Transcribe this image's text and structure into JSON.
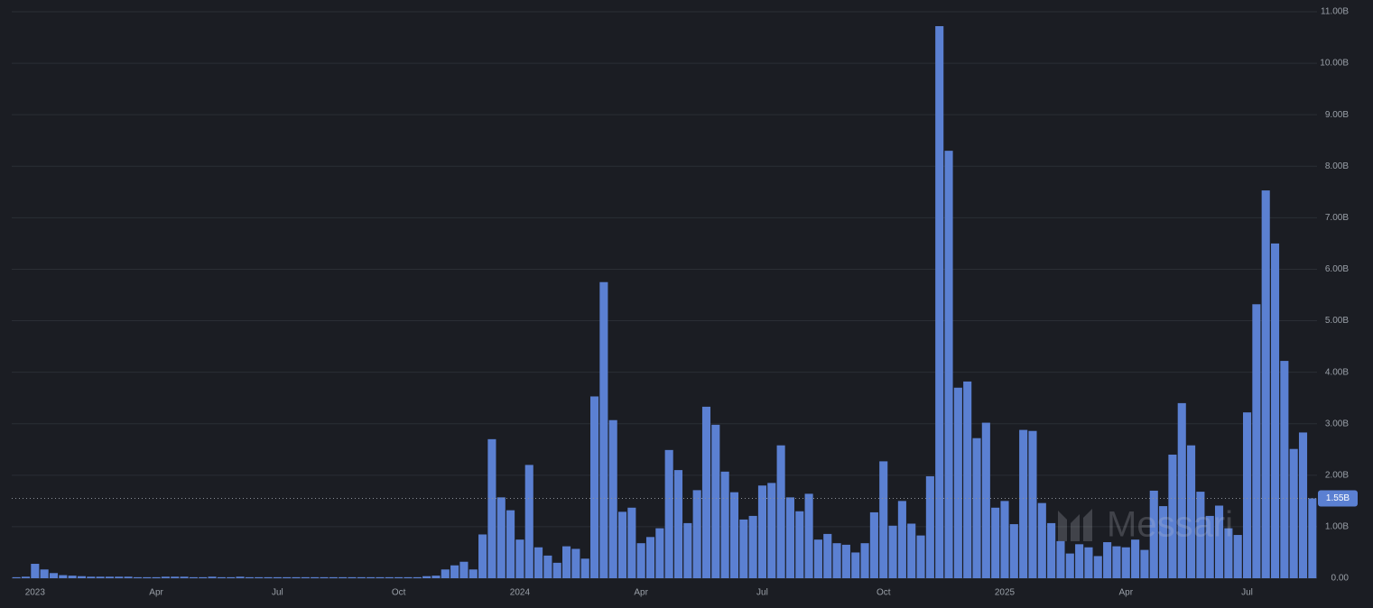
{
  "chart_data": {
    "type": "bar",
    "watermark": "Messari",
    "color": "#5b80d2",
    "grid": true,
    "y_axis_side": "right",
    "ylim": [
      0,
      11
    ],
    "yticks": [
      {
        "value": 0,
        "label": "0.00"
      },
      {
        "value": 1,
        "label": "1.00B"
      },
      {
        "value": 2,
        "label": "2.00B"
      },
      {
        "value": 3,
        "label": "3.00B"
      },
      {
        "value": 4,
        "label": "4.00B"
      },
      {
        "value": 5,
        "label": "5.00B"
      },
      {
        "value": 6,
        "label": "6.00B"
      },
      {
        "value": 7,
        "label": "7.00B"
      },
      {
        "value": 8,
        "label": "8.00B"
      },
      {
        "value": 9,
        "label": "9.00B"
      },
      {
        "value": 10,
        "label": "10.00B"
      },
      {
        "value": 11,
        "label": "11.00B"
      }
    ],
    "current_value": {
      "value": 1.55,
      "label": "1.55B"
    },
    "categories": [
      null,
      null,
      "2023",
      null,
      null,
      null,
      null,
      null,
      null,
      null,
      null,
      null,
      null,
      null,
      null,
      "Apr",
      null,
      null,
      null,
      null,
      null,
      null,
      null,
      null,
      null,
      null,
      null,
      null,
      "Jul",
      null,
      null,
      null,
      null,
      null,
      null,
      null,
      null,
      null,
      null,
      null,
      null,
      "Oct",
      null,
      null,
      null,
      null,
      null,
      null,
      null,
      null,
      null,
      null,
      null,
      null,
      "2024",
      null,
      null,
      null,
      null,
      null,
      null,
      null,
      null,
      null,
      null,
      null,
      null,
      "Apr",
      null,
      null,
      null,
      null,
      null,
      null,
      null,
      null,
      null,
      null,
      null,
      null,
      "Jul",
      null,
      null,
      null,
      null,
      null,
      null,
      null,
      null,
      null,
      null,
      null,
      null,
      "Oct",
      null,
      null,
      null,
      null,
      null,
      null,
      null,
      null,
      null,
      null,
      null,
      null,
      "2025",
      null,
      null,
      null,
      null,
      null,
      null,
      null,
      null,
      null,
      null,
      null,
      null,
      "Apr",
      null,
      null,
      null,
      null,
      null,
      null,
      null,
      null,
      null,
      null,
      null,
      null,
      "Jul",
      null,
      null,
      null,
      null,
      null,
      null,
      null
    ],
    "values": [
      0.02,
      0.03,
      0.28,
      0.17,
      0.1,
      0.06,
      0.05,
      0.04,
      0.03,
      0.03,
      0.03,
      0.03,
      0.03,
      0.02,
      0.02,
      0.02,
      0.03,
      0.03,
      0.03,
      0.02,
      0.02,
      0.03,
      0.02,
      0.02,
      0.03,
      0.02,
      0.02,
      0.02,
      0.02,
      0.02,
      0.02,
      0.02,
      0.02,
      0.02,
      0.02,
      0.02,
      0.02,
      0.02,
      0.02,
      0.02,
      0.02,
      0.02,
      0.02,
      0.02,
      0.04,
      0.05,
      0.17,
      0.25,
      0.32,
      0.17,
      0.85,
      2.7,
      1.57,
      1.32,
      0.75,
      2.2,
      0.6,
      0.44,
      0.3,
      0.62,
      0.57,
      0.38,
      3.53,
      5.75,
      3.07,
      1.29,
      1.37,
      0.68,
      0.8,
      0.97,
      2.49,
      2.1,
      1.07,
      1.71,
      3.33,
      2.98,
      2.07,
      1.67,
      1.14,
      1.21,
      1.8,
      1.85,
      2.58,
      1.57,
      1.3,
      1.64,
      0.75,
      0.86,
      0.68,
      0.65,
      0.5,
      0.68,
      1.28,
      2.27,
      1.02,
      1.5,
      1.06,
      0.83,
      1.98,
      10.72,
      8.3,
      3.7,
      3.82,
      2.72,
      3.02,
      1.37,
      1.5,
      1.05,
      2.88,
      2.86,
      1.46,
      1.07,
      0.72,
      0.48,
      0.66,
      0.6,
      0.43,
      0.7,
      0.62,
      0.6,
      0.75,
      0.55,
      1.7,
      1.4,
      2.4,
      3.4,
      2.58,
      1.68,
      1.21,
      1.41,
      0.97,
      0.84,
      3.22,
      5.32,
      7.53,
      6.5,
      4.22,
      2.51,
      2.83,
      1.55
    ]
  }
}
